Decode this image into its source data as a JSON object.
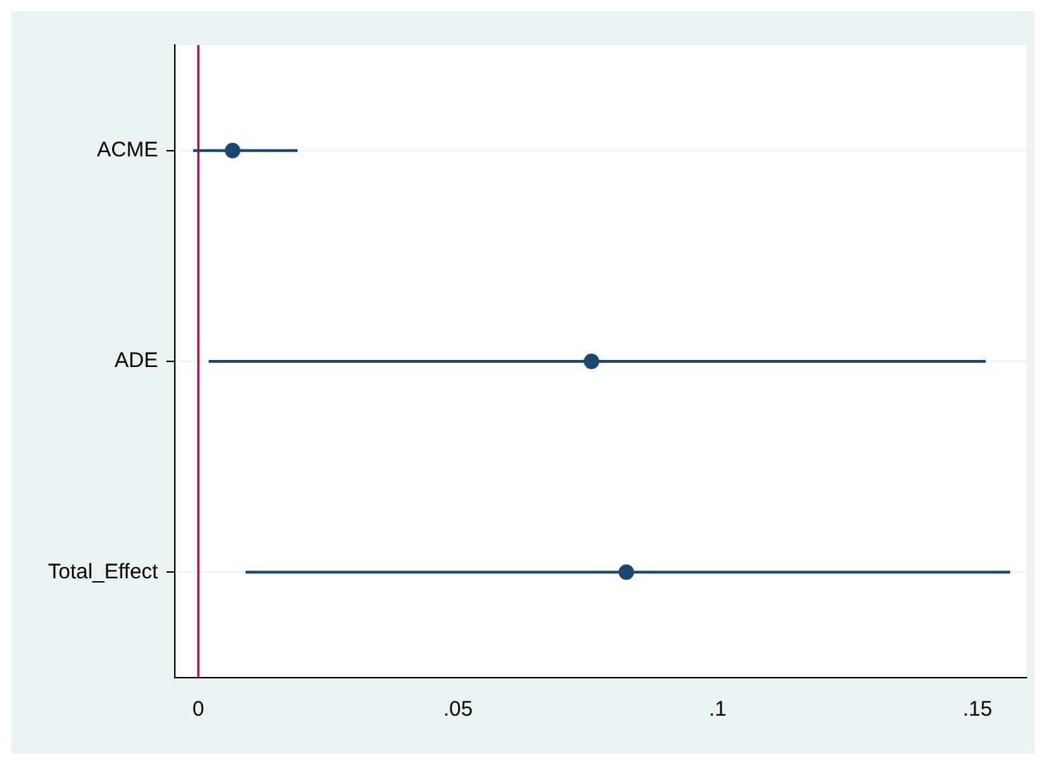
{
  "chart_data": {
    "type": "scatter",
    "orientation": "horizontal",
    "categories": [
      "ACME",
      "ADE",
      "Total_Effect"
    ],
    "series": [
      {
        "color": "#1a476f",
        "values": [
          0.0066,
          0.0757,
          0.0824
        ],
        "errors": [
          [
            -0.001,
            0.0191
          ],
          [
            0.002,
            0.1516
          ],
          [
            0.0091,
            0.1563
          ]
        ]
      }
    ],
    "xlim": [
      -0.0045,
      0.1594
    ],
    "xticks": [
      {
        "value": 0,
        "label": "0"
      },
      {
        "value": 0.05,
        "label": ".05"
      },
      {
        "value": 0.1,
        "label": ".1"
      },
      {
        "value": 0.15,
        "label": ".15"
      }
    ],
    "ref_lines": [
      {
        "axis": "x",
        "value": 0,
        "color": "#c10534"
      }
    ],
    "grid": "y",
    "marker": "circle",
    "legend": false
  }
}
